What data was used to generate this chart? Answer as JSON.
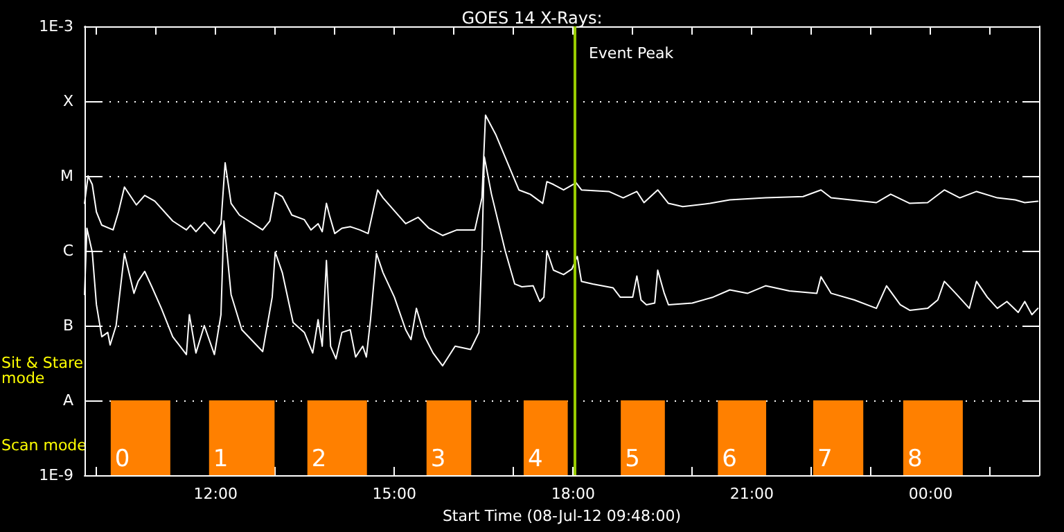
{
  "chart_data": {
    "type": "line",
    "title": "GOES 14 X-Rays:",
    "xlabel": "Start Time (08-Jul-12 09:48:00)",
    "annotations": [
      "Sit & Stare mode",
      "Scan mode"
    ],
    "log": "y",
    "grid": "y",
    "xlim": [
      9.8,
      25.82
    ],
    "ylim": [
      1e-09,
      0.001
    ],
    "xticks": [
      {
        "value": 10,
        "label": null
      },
      {
        "value": 11,
        "label": null
      },
      {
        "value": 12,
        "label": "12:00"
      },
      {
        "value": 13,
        "label": null
      },
      {
        "value": 14,
        "label": null
      },
      {
        "value": 15,
        "label": "15:00"
      },
      {
        "value": 16,
        "label": null
      },
      {
        "value": 17,
        "label": null
      },
      {
        "value": 18,
        "label": "18:00"
      },
      {
        "value": 19,
        "label": null
      },
      {
        "value": 20,
        "label": null
      },
      {
        "value": 21,
        "label": "21:00"
      },
      {
        "value": 22,
        "label": null
      },
      {
        "value": 23,
        "label": null
      },
      {
        "value": 24,
        "label": "00:00"
      },
      {
        "value": 25,
        "label": null
      }
    ],
    "yticks": [
      {
        "value": 1e-09,
        "label": "1E-9"
      },
      {
        "value": 1e-08,
        "label": "A"
      },
      {
        "value": 1e-07,
        "label": "B"
      },
      {
        "value": 1e-06,
        "label": "C"
      },
      {
        "value": 1e-05,
        "label": "M"
      },
      {
        "value": 0.0001,
        "label": "X"
      },
      {
        "value": 0.001,
        "label": "1E-3"
      }
    ],
    "series": [
      {
        "color": "#ffffff",
        "x": [
          9.8,
          9.86,
          9.93,
          10.0,
          10.09,
          10.28,
          10.37,
          10.47,
          10.67,
          10.81,
          10.98,
          11.28,
          11.51,
          11.58,
          11.67,
          11.81,
          11.98,
          12.09,
          12.16,
          12.26,
          12.4,
          12.79,
          12.91,
          13.0,
          13.12,
          13.28,
          13.49,
          13.6,
          13.72,
          13.79,
          13.86,
          13.91,
          14.0,
          14.12,
          14.26,
          14.42,
          14.56,
          14.72,
          14.81,
          15.19,
          15.4,
          15.58,
          15.81,
          16.05,
          16.35,
          16.47,
          16.53,
          16.7,
          17.09,
          17.28,
          17.49,
          17.56,
          17.67,
          17.84,
          18.05,
          18.14,
          18.6,
          18.84,
          19.07,
          19.19,
          19.42,
          19.6,
          19.84,
          20.3,
          20.63,
          21.23,
          21.86,
          22.16,
          22.33,
          23.09,
          23.33,
          23.65,
          23.95,
          24.23,
          24.49,
          24.77,
          25.12,
          25.42,
          25.58,
          25.8
        ],
        "values": [
          4.3e-06,
          1e-05,
          7.7e-06,
          3.3e-06,
          2.2e-06,
          1.9e-06,
          3.3e-06,
          7.1e-06,
          4.1e-06,
          5.5e-06,
          4.6e-06,
          2.5e-06,
          1.9e-06,
          2.2e-06,
          1.8e-06,
          2.4e-06,
          1.7e-06,
          2.3e-06,
          1.5e-05,
          4.3e-06,
          3e-06,
          1.9e-06,
          2.5e-06,
          6e-06,
          5.3e-06,
          3e-06,
          2.6e-06,
          1.9e-06,
          2.3e-06,
          1.8e-06,
          4.3e-06,
          3e-06,
          1.7e-06,
          2e-06,
          2.1e-06,
          1.9e-06,
          1.7e-06,
          6.5e-06,
          5.1e-06,
          2.3e-06,
          2.8e-06,
          2e-06,
          1.6e-06,
          1.9e-06,
          1.9e-06,
          5.1e-06,
          6.5e-05,
          3.6e-05,
          6.5e-06,
          5.7e-06,
          4.3e-06,
          8.4e-06,
          7.7e-06,
          6.5e-06,
          8.1e-06,
          6.5e-06,
          6.2e-06,
          5.1e-06,
          6.2e-06,
          4.4e-06,
          6.5e-06,
          4.3e-06,
          3.9e-06,
          4.3e-06,
          4.8e-06,
          5.1e-06,
          5.3e-06,
          6.5e-06,
          5.1e-06,
          4.4e-06,
          5.7e-06,
          4.3e-06,
          4.4e-06,
          6.5e-06,
          5.1e-06,
          6.2e-06,
          5.1e-06,
          4.8e-06,
          4.4e-06,
          4.6e-06
        ]
      },
      {
        "color": "#ffffff",
        "x": [
          9.8,
          9.84,
          9.93,
          10.0,
          10.09,
          10.19,
          10.23,
          10.33,
          10.47,
          10.63,
          10.7,
          10.81,
          10.93,
          11.09,
          11.28,
          11.51,
          11.56,
          11.67,
          11.81,
          11.98,
          12.09,
          12.14,
          12.26,
          12.44,
          12.79,
          12.95,
          13.0,
          13.12,
          13.3,
          13.49,
          13.63,
          13.72,
          13.79,
          13.86,
          13.93,
          14.02,
          14.12,
          14.26,
          14.35,
          14.47,
          14.53,
          14.6,
          14.7,
          14.81,
          15.0,
          15.19,
          15.28,
          15.37,
          15.51,
          15.65,
          15.81,
          16.02,
          16.28,
          16.42,
          16.47,
          16.51,
          16.63,
          16.86,
          17.02,
          17.14,
          17.33,
          17.44,
          17.51,
          17.56,
          17.67,
          17.84,
          17.98,
          18.07,
          18.14,
          18.33,
          18.67,
          18.79,
          19.0,
          19.07,
          19.14,
          19.23,
          19.37,
          19.42,
          19.53,
          19.6,
          20.0,
          20.35,
          20.63,
          20.93,
          21.23,
          21.63,
          22.09,
          22.16,
          22.33,
          22.72,
          23.09,
          23.26,
          23.49,
          23.65,
          23.95,
          24.12,
          24.23,
          24.42,
          24.65,
          24.77,
          24.95,
          25.12,
          25.28,
          25.47,
          25.58,
          25.7,
          25.8
        ],
        "values": [
          2.6e-07,
          2e-06,
          9.6e-07,
          1.9e-07,
          7.1e-08,
          8.1e-08,
          5.5e-08,
          1e-07,
          9.2e-07,
          2.7e-07,
          3.9e-07,
          5.3e-07,
          3.3e-07,
          1.7e-07,
          7.1e-08,
          4.1e-08,
          1.4e-07,
          4.3e-08,
          1e-07,
          4.1e-08,
          1.4e-07,
          2.5e-06,
          2.6e-07,
          8.8e-08,
          4.5e-08,
          2.4e-07,
          9.6e-07,
          5.1e-07,
          1.1e-07,
          8.1e-08,
          4.3e-08,
          1.2e-07,
          5.3e-08,
          7.4e-07,
          5.3e-08,
          3.6e-08,
          8.1e-08,
          8.8e-08,
          3.8e-08,
          5.3e-08,
          3.8e-08,
          1.2e-07,
          9.2e-07,
          5.1e-07,
          2.4e-07,
          8.8e-08,
          6.5e-08,
          1.7e-07,
          7.1e-08,
          4.3e-08,
          2.9e-08,
          5.3e-08,
          4.8e-08,
          8.1e-08,
          1e-06,
          1.8e-05,
          5.7e-06,
          1e-06,
          3.6e-07,
          3.3e-07,
          3.4e-07,
          2.1e-07,
          2.4e-07,
          1e-06,
          5.5e-07,
          4.8e-07,
          5.7e-07,
          8.4e-07,
          3.9e-07,
          3.6e-07,
          3.2e-07,
          2.4e-07,
          2.4e-07,
          4.6e-07,
          2.2e-07,
          1.9e-07,
          2e-07,
          5.5e-07,
          2.7e-07,
          1.9e-07,
          2e-07,
          2.4e-07,
          3e-07,
          2.7e-07,
          3.4e-07,
          2.9e-07,
          2.7e-07,
          4.5e-07,
          2.7e-07,
          2.2e-07,
          1.7e-07,
          3.4e-07,
          1.9e-07,
          1.6e-07,
          1.7e-07,
          2.2e-07,
          3.9e-07,
          2.7e-07,
          1.7e-07,
          3.9e-07,
          2.4e-07,
          1.7e-07,
          2.1e-07,
          1.5e-07,
          2.1e-07,
          1.4e-07,
          1.7e-07
        ]
      }
    ],
    "ref_lines": [
      {
        "axis": "x",
        "value": 18.03,
        "label": "Event Peak",
        "color": "#99cc00"
      }
    ],
    "bands": [
      {
        "axis": "x",
        "from": 10.24,
        "to": 11.24,
        "label": "0",
        "color": "#ff8000"
      },
      {
        "axis": "x",
        "from": 11.89,
        "to": 12.99,
        "label": "1",
        "color": "#ff8000"
      },
      {
        "axis": "x",
        "from": 13.54,
        "to": 14.54,
        "label": "2",
        "color": "#ff8000"
      },
      {
        "axis": "x",
        "from": 15.54,
        "to": 16.29,
        "label": "3",
        "color": "#ff8000"
      },
      {
        "axis": "x",
        "from": 17.17,
        "to": 17.91,
        "label": "4",
        "color": "#ff8000"
      },
      {
        "axis": "x",
        "from": 18.8,
        "to": 19.54,
        "label": "5",
        "color": "#ff8000"
      },
      {
        "axis": "x",
        "from": 20.43,
        "to": 21.24,
        "label": "6",
        "color": "#ff8000"
      },
      {
        "axis": "x",
        "from": 22.03,
        "to": 22.87,
        "label": "7",
        "color": "#ff8000"
      },
      {
        "axis": "x",
        "from": 23.54,
        "to": 24.54,
        "label": "8",
        "color": "#ff8000"
      }
    ]
  }
}
